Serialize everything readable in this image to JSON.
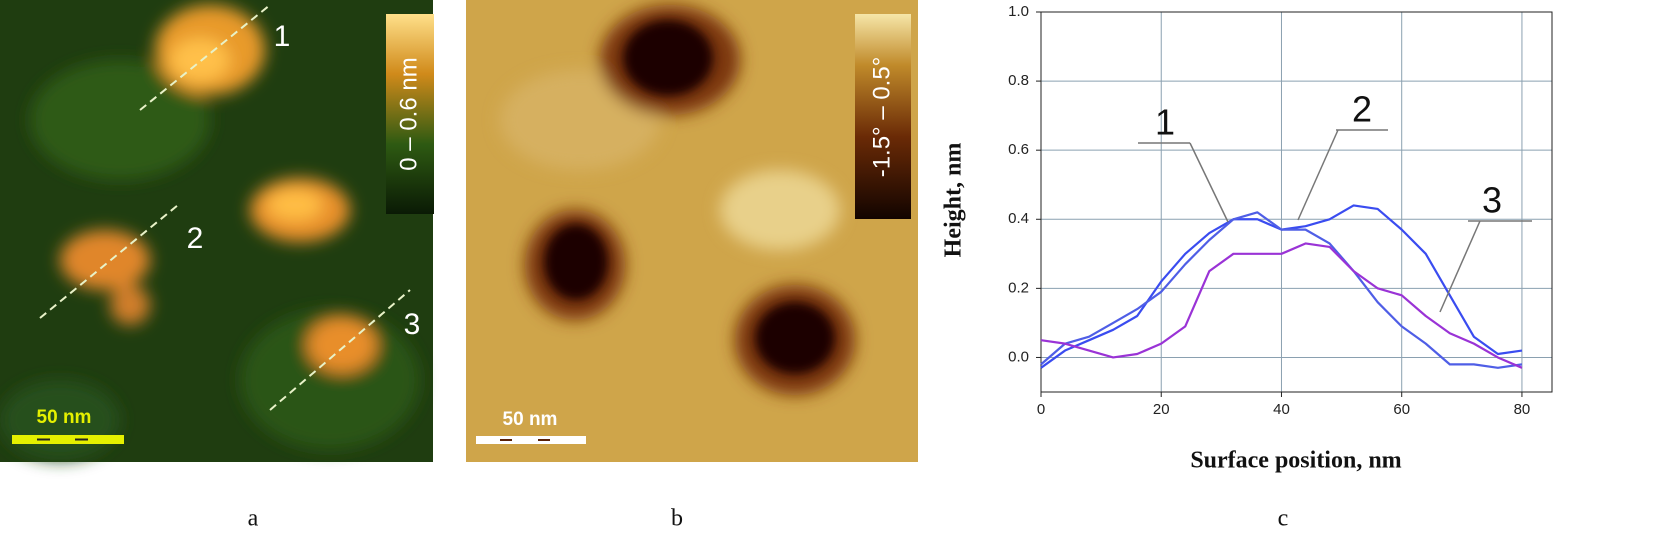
{
  "panels": [
    {
      "label": "a",
      "colorbar": "0 – 0.6 nm",
      "scale_bar": "50 nm",
      "line_labels": [
        "1",
        "2",
        "3"
      ]
    },
    {
      "label": "b",
      "colorbar": "-1.5° – 0.5°",
      "scale_bar": "50 nm"
    }
  ],
  "chart_data": {
    "type": "line",
    "label": "c",
    "xlabel": "Surface position, nm",
    "ylabel": "Height, nm",
    "x": [
      0,
      4,
      8,
      12,
      16,
      20,
      24,
      28,
      32,
      36,
      40,
      44,
      48,
      52,
      56,
      60,
      64,
      68,
      72,
      76,
      80
    ],
    "series": [
      {
        "name": "1",
        "color": "#3a4cf0",
        "values": [
          -0.03,
          0.02,
          0.05,
          0.08,
          0.12,
          0.22,
          0.3,
          0.36,
          0.4,
          0.4,
          0.37,
          0.38,
          0.4,
          0.44,
          0.43,
          0.37,
          0.3,
          0.18,
          0.06,
          0.01,
          0.02
        ]
      },
      {
        "name": "2",
        "color": "#4f5ee6",
        "values": [
          -0.02,
          0.04,
          0.06,
          0.1,
          0.14,
          0.19,
          0.27,
          0.34,
          0.4,
          0.42,
          0.37,
          0.37,
          0.33,
          0.25,
          0.16,
          0.09,
          0.04,
          -0.02,
          -0.02,
          -0.03,
          -0.02
        ]
      },
      {
        "name": "3",
        "color": "#9a33d6",
        "values": [
          0.05,
          0.04,
          0.02,
          0.0,
          0.01,
          0.04,
          0.09,
          0.25,
          0.3,
          0.3,
          0.3,
          0.33,
          0.32,
          0.25,
          0.2,
          0.18,
          0.12,
          0.07,
          0.04,
          0.0,
          -0.03
        ]
      }
    ],
    "xlim": [
      0,
      85
    ],
    "xticks": [
      0,
      20,
      40,
      60,
      80
    ],
    "ylim": [
      -0.1,
      1.0
    ],
    "yticks": [
      {
        "value": 0,
        "label": "0.0"
      },
      0.2,
      0.4,
      0.6,
      0.8,
      {
        "value": 1,
        "label": "1.0"
      }
    ],
    "grid": true
  }
}
